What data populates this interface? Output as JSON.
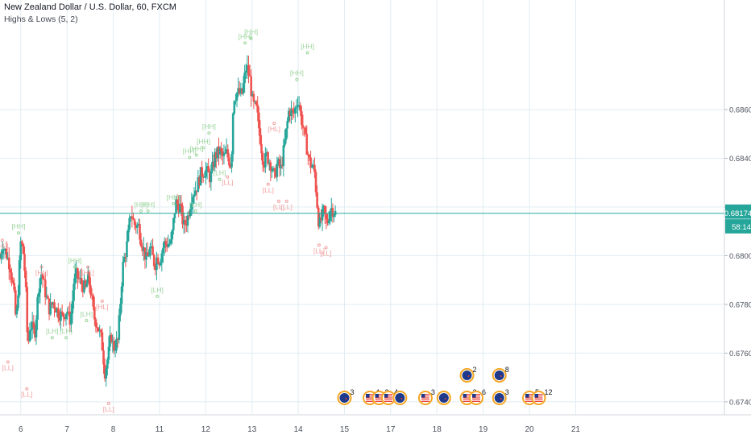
{
  "header": {
    "title": "New Zealand Dollar / U.S. Dollar, 60, FXCM",
    "indicator": "Highs & Lows (5, 2)"
  },
  "colors": {
    "up": "#26a69a",
    "down": "#ef5350",
    "grid": "#e1ecf2",
    "axis_text": "#4c525e",
    "hh": "#9cd49c",
    "ll": "#f0a0a0",
    "event_ring": "#f5a623"
  },
  "price_badge": {
    "price": "0.68174",
    "countdown": "58:14"
  },
  "chart_data": {
    "type": "candlestick",
    "title": "New Zealand Dollar / U.S. Dollar, 60, FXCM",
    "ylim": [
      0.6735,
      0.6905
    ],
    "xlim": [
      5.55,
      21.2
    ],
    "y_ticks": [
      "0.68600",
      "0.68400",
      "0.68200",
      "0.68000",
      "0.67800",
      "0.67600",
      "0.67400"
    ],
    "x_ticks": [
      {
        "label": "6",
        "x": 6
      },
      {
        "label": "7",
        "x": 7
      },
      {
        "label": "8",
        "x": 8
      },
      {
        "label": "11",
        "x": 9
      },
      {
        "label": "12",
        "x": 10
      },
      {
        "label": "13",
        "x": 11
      },
      {
        "label": "14",
        "x": 12
      },
      {
        "label": "15",
        "x": 13
      },
      {
        "label": "17",
        "x": 14
      },
      {
        "label": "18",
        "x": 15
      },
      {
        "label": "19",
        "x": 16
      },
      {
        "label": "20",
        "x": 17
      },
      {
        "label": "21",
        "x": 18
      }
    ],
    "grid": true,
    "last_price": 0.68174,
    "candle_path": [
      [
        5.55,
        0.6799
      ],
      [
        5.6,
        0.6805
      ],
      [
        5.7,
        0.68
      ],
      [
        5.78,
        0.6795
      ],
      [
        5.85,
        0.6785
      ],
      [
        5.9,
        0.6772
      ],
      [
        6.0,
        0.6806
      ],
      [
        6.05,
        0.6802
      ],
      [
        6.1,
        0.679
      ],
      [
        6.15,
        0.6762
      ],
      [
        6.2,
        0.6772
      ],
      [
        6.3,
        0.6768
      ],
      [
        6.4,
        0.679
      ],
      [
        6.45,
        0.6793
      ],
      [
        6.55,
        0.6783
      ],
      [
        6.62,
        0.6778
      ],
      [
        6.7,
        0.6781
      ],
      [
        6.8,
        0.6777
      ],
      [
        6.9,
        0.6775
      ],
      [
        7.0,
        0.6778
      ],
      [
        7.05,
        0.6773
      ],
      [
        7.1,
        0.6777
      ],
      [
        7.15,
        0.679
      ],
      [
        7.2,
        0.6792
      ],
      [
        7.3,
        0.6789
      ],
      [
        7.4,
        0.6786
      ],
      [
        7.45,
        0.6791
      ],
      [
        7.5,
        0.6787
      ],
      [
        7.58,
        0.6775
      ],
      [
        7.65,
        0.6772
      ],
      [
        7.75,
        0.6765
      ],
      [
        7.82,
        0.6752
      ],
      [
        7.9,
        0.676
      ],
      [
        7.95,
        0.6768
      ],
      [
        8.0,
        0.6762
      ],
      [
        8.1,
        0.6765
      ],
      [
        8.2,
        0.6795
      ],
      [
        8.3,
        0.6805
      ],
      [
        8.38,
        0.6818
      ],
      [
        8.45,
        0.6813
      ],
      [
        8.55,
        0.6812
      ],
      [
        8.62,
        0.6805
      ],
      [
        8.72,
        0.6798
      ],
      [
        8.8,
        0.6803
      ],
      [
        8.9,
        0.6796
      ],
      [
        8.95,
        0.68
      ],
      [
        9.0,
        0.6798
      ],
      [
        9.1,
        0.6805
      ],
      [
        9.25,
        0.6805
      ],
      [
        9.35,
        0.6822
      ],
      [
        9.45,
        0.682
      ],
      [
        9.52,
        0.6812
      ],
      [
        9.6,
        0.6815
      ],
      [
        9.7,
        0.6825
      ],
      [
        9.8,
        0.6828
      ],
      [
        9.9,
        0.6834
      ],
      [
        10.0,
        0.6835
      ],
      [
        10.1,
        0.6832
      ],
      [
        10.2,
        0.6841
      ],
      [
        10.3,
        0.6843
      ],
      [
        10.38,
        0.684
      ],
      [
        10.45,
        0.6842
      ],
      [
        10.55,
        0.6837
      ],
      [
        10.6,
        0.6865
      ],
      [
        10.68,
        0.6867
      ],
      [
        10.78,
        0.6866
      ],
      [
        10.88,
        0.6878
      ],
      [
        10.95,
        0.6873
      ],
      [
        11.02,
        0.6862
      ],
      [
        11.1,
        0.686
      ],
      [
        11.18,
        0.6848
      ],
      [
        11.25,
        0.6838
      ],
      [
        11.32,
        0.6841
      ],
      [
        11.4,
        0.6838
      ],
      [
        11.48,
        0.6832
      ],
      [
        11.55,
        0.6838
      ],
      [
        11.62,
        0.6835
      ],
      [
        11.7,
        0.6845
      ],
      [
        11.8,
        0.686
      ],
      [
        11.9,
        0.6858
      ],
      [
        12.0,
        0.6865
      ],
      [
        12.05,
        0.6858
      ],
      [
        12.15,
        0.6848
      ],
      [
        12.25,
        0.6838
      ],
      [
        12.35,
        0.6835
      ],
      [
        12.45,
        0.6812
      ],
      [
        12.55,
        0.6818
      ],
      [
        12.62,
        0.6813
      ],
      [
        12.7,
        0.682
      ],
      [
        12.78,
        0.6818
      ],
      [
        12.82,
        0.6817
      ]
    ],
    "markers": [
      {
        "x": 5.6,
        "y": 0.6807,
        "label": "[HL]",
        "type": "low"
      },
      {
        "x": 5.72,
        "y": 0.6757,
        "label": "[LL]",
        "type": "low"
      },
      {
        "x": 5.95,
        "y": 0.6811,
        "label": "[HH]",
        "type": "high"
      },
      {
        "x": 6.13,
        "y": 0.6746,
        "label": "[LL]",
        "type": "low"
      },
      {
        "x": 6.45,
        "y": 0.6796,
        "label": "[HL]",
        "type": "low"
      },
      {
        "x": 6.68,
        "y": 0.6768,
        "label": "[LH]",
        "type": "high"
      },
      {
        "x": 6.98,
        "y": 0.6768,
        "label": "[LH]",
        "type": "high"
      },
      {
        "x": 7.17,
        "y": 0.6797,
        "label": "[HH]",
        "type": "high"
      },
      {
        "x": 7.45,
        "y": 0.6796,
        "label": "[HL]",
        "type": "low"
      },
      {
        "x": 7.42,
        "y": 0.6775,
        "label": "[LH]",
        "type": "high"
      },
      {
        "x": 7.76,
        "y": 0.6782,
        "label": "[HL]",
        "type": "low"
      },
      {
        "x": 7.9,
        "y": 0.674,
        "label": "[LL]",
        "type": "low"
      },
      {
        "x": 8.6,
        "y": 0.682,
        "label": "[HH]",
        "type": "high"
      },
      {
        "x": 8.75,
        "y": 0.682,
        "label": "[HH]",
        "type": "high"
      },
      {
        "x": 8.95,
        "y": 0.6785,
        "label": "[LH]",
        "type": "high"
      },
      {
        "x": 9.3,
        "y": 0.6823,
        "label": "[HH]",
        "type": "high"
      },
      {
        "x": 9.78,
        "y": 0.682,
        "label": "[LH]",
        "type": "high"
      },
      {
        "x": 9.65,
        "y": 0.6842,
        "label": "[HH]",
        "type": "high"
      },
      {
        "x": 9.8,
        "y": 0.6843,
        "label": "[HH]",
        "type": "high"
      },
      {
        "x": 9.95,
        "y": 0.6846,
        "label": "[HH]",
        "type": "high"
      },
      {
        "x": 10.07,
        "y": 0.6852,
        "label": "[HH]",
        "type": "high"
      },
      {
        "x": 10.3,
        "y": 0.6833,
        "label": "[LH]",
        "type": "high"
      },
      {
        "x": 10.47,
        "y": 0.6833,
        "label": "[LL]",
        "type": "low"
      },
      {
        "x": 10.85,
        "y": 0.6889,
        "label": "[HH]",
        "type": "high"
      },
      {
        "x": 10.98,
        "y": 0.6891,
        "label": "[HH]",
        "type": "high"
      },
      {
        "x": 11.35,
        "y": 0.683,
        "label": "[LL]",
        "type": "low"
      },
      {
        "x": 11.48,
        "y": 0.6855,
        "label": "[HL]",
        "type": "low"
      },
      {
        "x": 11.58,
        "y": 0.6823,
        "label": "[LL]",
        "type": "low"
      },
      {
        "x": 11.75,
        "y": 0.6823,
        "label": "[LL]",
        "type": "low"
      },
      {
        "x": 11.97,
        "y": 0.6874,
        "label": "[HH]",
        "type": "high"
      },
      {
        "x": 12.2,
        "y": 0.6885,
        "label": "[HH]",
        "type": "high"
      },
      {
        "x": 12.45,
        "y": 0.6805,
        "label": "[LL]",
        "type": "low"
      },
      {
        "x": 12.6,
        "y": 0.6804,
        "label": "[LL]",
        "type": "low"
      }
    ],
    "events": [
      {
        "x": 13.0,
        "row": 1,
        "flag": "nz",
        "count": "3"
      },
      {
        "x": 13.55,
        "row": 1,
        "flag": "us",
        "count": "4"
      },
      {
        "x": 13.75,
        "row": 1,
        "flag": "us",
        "count": "2"
      },
      {
        "x": 13.95,
        "row": 1,
        "flag": "us",
        "count": "4"
      },
      {
        "x": 14.2,
        "row": 1,
        "flag": "nz",
        "count": ""
      },
      {
        "x": 14.75,
        "row": 1,
        "flag": "us",
        "count": "3"
      },
      {
        "x": 15.15,
        "row": 1,
        "flag": "nz",
        "count": ""
      },
      {
        "x": 15.65,
        "row": 1,
        "flag": "us",
        "count": "2"
      },
      {
        "x": 15.85,
        "row": 1,
        "flag": "us",
        "count": "6"
      },
      {
        "x": 16.35,
        "row": 1,
        "flag": "nz",
        "count": "3"
      },
      {
        "x": 17.0,
        "row": 1,
        "flag": "us",
        "count": "5"
      },
      {
        "x": 17.2,
        "row": 1,
        "flag": "us",
        "count": "12"
      },
      {
        "x": 15.65,
        "row": 2,
        "flag": "nz",
        "count": "2"
      },
      {
        "x": 16.35,
        "row": 2,
        "flag": "nz",
        "count": "8"
      }
    ]
  }
}
